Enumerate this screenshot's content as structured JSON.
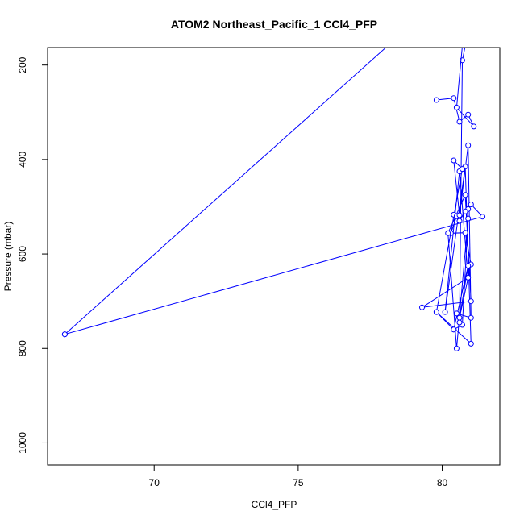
{
  "chart_data": {
    "type": "line",
    "title": "ATOM2 Northeast_Pacific_1 CCl4_PFP",
    "xlabel": "CCl4_PFP",
    "ylabel": "Pressure (mbar)",
    "xlim": [
      66.3,
      82.0
    ],
    "ylim": [
      1047,
      163
    ],
    "y_reversed": true,
    "x_ticks": [
      70,
      75,
      80
    ],
    "y_ticks": [
      200,
      400,
      600,
      800,
      1000
    ],
    "grid": false,
    "color": "#0000ff",
    "series": [
      {
        "x": [
          66.9,
          81.4,
          81.0,
          80.9,
          80.8,
          80.6,
          80.4,
          80.5,
          80.3,
          80.8,
          81.0,
          80.6,
          80.9,
          80.4,
          80.7,
          80.9,
          80.5,
          80.2,
          80.8,
          81.0,
          79.3,
          80.9,
          80.6,
          80.1,
          80.8,
          81.0,
          79.8,
          80.7,
          80.4,
          80.6,
          80.9,
          81.0,
          80.5,
          80.6,
          80.7,
          80.8,
          80.9,
          81.1,
          80.6,
          80.7,
          80.8,
          80.9
        ],
        "y": [
          770,
          521,
          495,
          505,
          510,
          530,
          517,
          520,
          556,
          555,
          622,
          735,
          625,
          760,
          750,
          525,
          800,
          556,
          475,
          700,
          713,
          650,
          425,
          723,
          415,
          790,
          723,
          420,
          402,
          518,
          370,
          735,
          726,
          745,
          190,
          160,
          160,
          160,
          160,
          160,
          160,
          160
        ]
      },
      {
        "x": [
          79.8,
          80.4,
          80.6,
          80.9,
          81.1,
          80.5,
          80.7,
          80.8
        ],
        "y": [
          274,
          270,
          320,
          305,
          330,
          290,
          160,
          160
        ]
      },
      {
        "x": [
          66.9,
          78.1
        ],
        "y": [
          770,
          160
        ]
      },
      {
        "x": [
          79.8,
          80.4
        ],
        "y": [
          723,
          760
        ]
      }
    ]
  }
}
